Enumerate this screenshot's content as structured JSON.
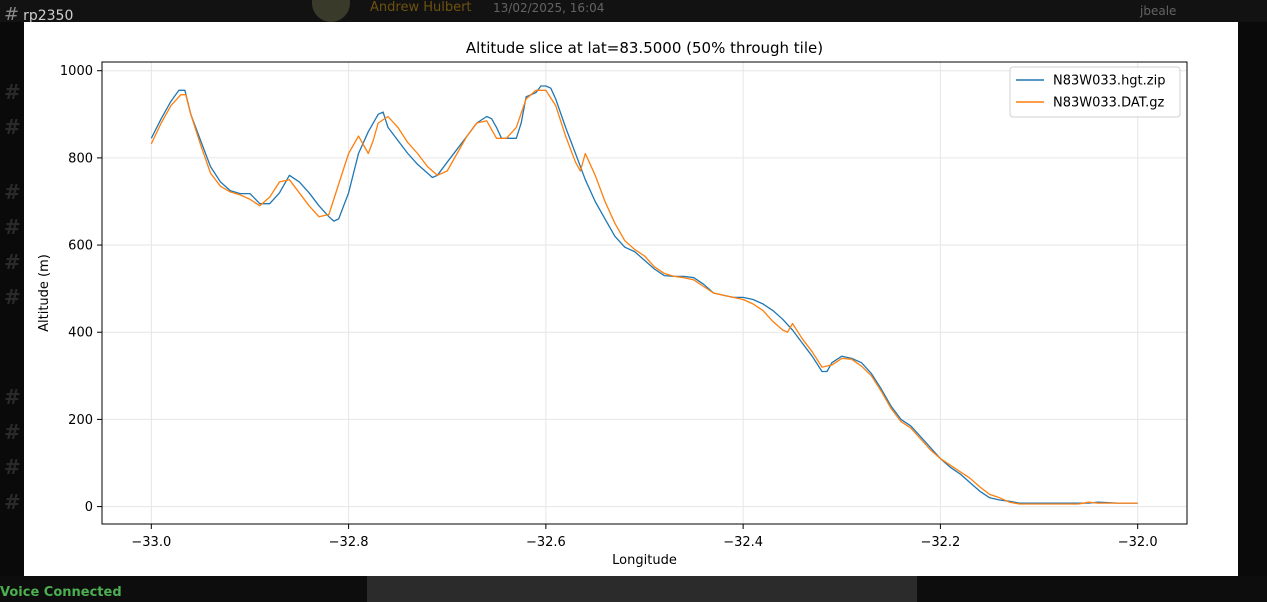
{
  "background": {
    "channel_name": "rp2350",
    "author": "Andrew Hulbert",
    "timestamp": "13/02/2025, 16:04",
    "username": "jbeale",
    "status": "Voice Connected"
  },
  "chart_data": {
    "type": "line",
    "title": "Altitude slice at lat=83.5000 (50% through tile)",
    "xlabel": "Longitude",
    "ylabel": "Altitude (m)",
    "xlim": [
      -33.05,
      -31.95
    ],
    "ylim": [
      -40,
      1020
    ],
    "xticks": [
      -33.0,
      -32.8,
      -32.6,
      -32.4,
      -32.2,
      -32.0
    ],
    "xtick_labels": [
      "−33.0",
      "−32.8",
      "−32.6",
      "−32.4",
      "−32.2",
      "−32.0"
    ],
    "yticks": [
      0,
      200,
      400,
      600,
      800,
      1000
    ],
    "ytick_labels": [
      "0",
      "200",
      "400",
      "600",
      "800",
      "1000"
    ],
    "grid": true,
    "legend_position": "top-right",
    "series": [
      {
        "name": "N83W033.hgt.zip",
        "color": "#1f77b4",
        "x": [
          -33.0,
          -32.99,
          -32.98,
          -32.972,
          -32.966,
          -32.96,
          -32.95,
          -32.94,
          -32.93,
          -32.92,
          -32.91,
          -32.9,
          -32.89,
          -32.88,
          -32.87,
          -32.86,
          -32.85,
          -32.84,
          -32.83,
          -32.82,
          -32.815,
          -32.81,
          -32.8,
          -32.79,
          -32.78,
          -32.77,
          -32.765,
          -32.76,
          -32.75,
          -32.74,
          -32.73,
          -32.72,
          -32.715,
          -32.71,
          -32.7,
          -32.69,
          -32.68,
          -32.67,
          -32.66,
          -32.655,
          -32.65,
          -32.645,
          -32.64,
          -32.63,
          -32.625,
          -32.62,
          -32.61,
          -32.605,
          -32.6,
          -32.595,
          -32.59,
          -32.58,
          -32.57,
          -32.56,
          -32.55,
          -32.54,
          -32.53,
          -32.52,
          -32.51,
          -32.5,
          -32.49,
          -32.48,
          -32.47,
          -32.46,
          -32.45,
          -32.44,
          -32.43,
          -32.42,
          -32.41,
          -32.4,
          -32.39,
          -32.38,
          -32.37,
          -32.36,
          -32.35,
          -32.34,
          -32.33,
          -32.32,
          -32.315,
          -32.31,
          -32.3,
          -32.29,
          -32.28,
          -32.27,
          -32.26,
          -32.25,
          -32.24,
          -32.23,
          -32.22,
          -32.21,
          -32.2,
          -32.19,
          -32.18,
          -32.17,
          -32.16,
          -32.15,
          -32.14,
          -32.13,
          -32.12,
          -32.1,
          -32.08,
          -32.06,
          -32.05,
          -32.04,
          -32.02,
          -32.0
        ],
        "y": [
          845,
          890,
          930,
          955,
          955,
          900,
          840,
          780,
          745,
          725,
          718,
          718,
          695,
          695,
          720,
          760,
          745,
          720,
          690,
          665,
          655,
          660,
          720,
          810,
          860,
          900,
          905,
          870,
          840,
          810,
          785,
          765,
          755,
          760,
          790,
          820,
          850,
          880,
          895,
          890,
          870,
          845,
          845,
          845,
          880,
          940,
          950,
          965,
          965,
          960,
          935,
          870,
          810,
          750,
          700,
          660,
          620,
          595,
          585,
          565,
          545,
          530,
          528,
          528,
          525,
          510,
          490,
          485,
          480,
          480,
          475,
          465,
          450,
          430,
          405,
          375,
          345,
          310,
          310,
          330,
          345,
          340,
          330,
          305,
          270,
          230,
          200,
          185,
          160,
          135,
          110,
          90,
          75,
          55,
          35,
          20,
          15,
          12,
          8,
          8,
          8,
          8,
          8,
          10,
          8,
          8
        ]
      },
      {
        "name": "N83W033.DAT.gz",
        "color": "#ff7f0e",
        "x": [
          -33.0,
          -32.99,
          -32.98,
          -32.97,
          -32.965,
          -32.96,
          -32.95,
          -32.94,
          -32.93,
          -32.92,
          -32.91,
          -32.9,
          -32.89,
          -32.88,
          -32.87,
          -32.86,
          -32.85,
          -32.84,
          -32.83,
          -32.82,
          -32.81,
          -32.8,
          -32.79,
          -32.78,
          -32.775,
          -32.77,
          -32.76,
          -32.75,
          -32.74,
          -32.73,
          -32.72,
          -32.71,
          -32.7,
          -32.69,
          -32.68,
          -32.67,
          -32.66,
          -32.65,
          -32.64,
          -32.63,
          -32.62,
          -32.61,
          -32.6,
          -32.59,
          -32.58,
          -32.57,
          -32.565,
          -32.56,
          -32.55,
          -32.54,
          -32.53,
          -32.52,
          -32.51,
          -32.5,
          -32.49,
          -32.48,
          -32.47,
          -32.46,
          -32.45,
          -32.44,
          -32.43,
          -32.42,
          -32.41,
          -32.4,
          -32.39,
          -32.38,
          -32.37,
          -32.36,
          -32.355,
          -32.35,
          -32.34,
          -32.33,
          -32.32,
          -32.31,
          -32.3,
          -32.29,
          -32.28,
          -32.27,
          -32.26,
          -32.25,
          -32.24,
          -32.23,
          -32.22,
          -32.21,
          -32.2,
          -32.19,
          -32.18,
          -32.17,
          -32.16,
          -32.15,
          -32.14,
          -32.13,
          -32.12,
          -32.1,
          -32.08,
          -32.06,
          -32.05,
          -32.04,
          -32.02,
          -32.0
        ],
        "y": [
          832,
          880,
          920,
          945,
          945,
          900,
          830,
          765,
          735,
          722,
          715,
          705,
          690,
          710,
          745,
          750,
          720,
          690,
          665,
          670,
          740,
          810,
          850,
          810,
          840,
          880,
          895,
          870,
          835,
          810,
          780,
          760,
          770,
          810,
          850,
          880,
          885,
          845,
          845,
          870,
          935,
          955,
          955,
          920,
          850,
          790,
          770,
          810,
          760,
          700,
          650,
          610,
          590,
          575,
          550,
          535,
          528,
          525,
          520,
          505,
          490,
          485,
          480,
          475,
          465,
          450,
          425,
          405,
          400,
          420,
          385,
          355,
          320,
          325,
          340,
          338,
          322,
          300,
          265,
          225,
          195,
          180,
          155,
          130,
          110,
          95,
          80,
          65,
          45,
          28,
          20,
          10,
          6,
          6,
          6,
          6,
          10,
          8,
          8,
          8
        ]
      }
    ]
  }
}
